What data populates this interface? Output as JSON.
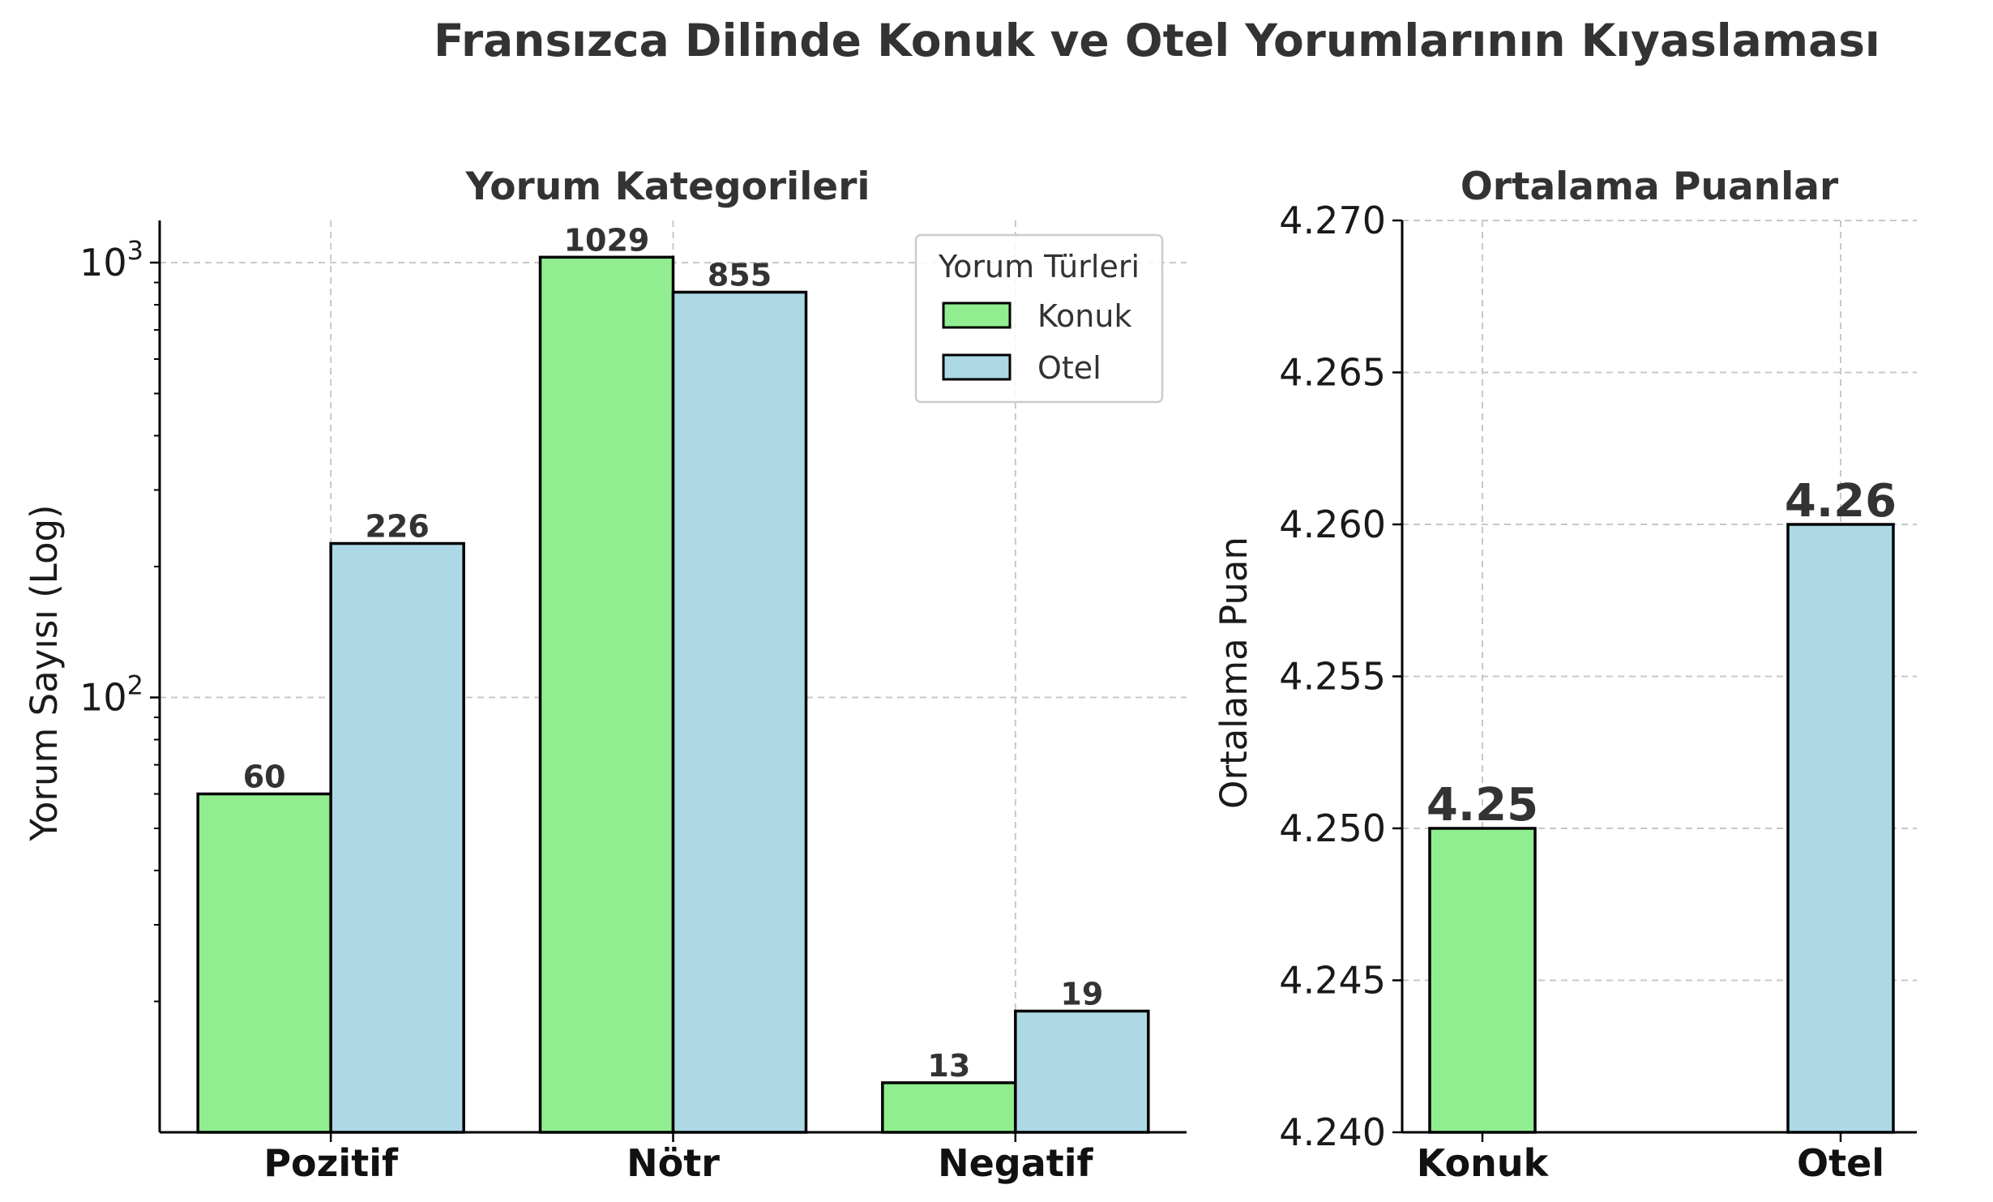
{
  "figure": {
    "title": "Fransızca Dilinde Konuk ve Otel Yorumlarının Kıyaslaması"
  },
  "colors": {
    "konuk": "#90ee90",
    "otel": "#add8e6",
    "edge": "#000000",
    "grid": "#c8c8c8",
    "text": "#333333"
  },
  "chart_data": [
    {
      "type": "bar",
      "title": "Yorum Kategorileri",
      "xlabel": "",
      "ylabel": "Yorum Sayısı (Log)",
      "yscale": "log",
      "ylim": [
        10,
        1250
      ],
      "yticks": [
        100,
        1000
      ],
      "ytick_labels": [
        {
          "base": "10",
          "exp": "2"
        },
        {
          "base": "10",
          "exp": "3"
        }
      ],
      "categories": [
        "Pozitif",
        "Nötr",
        "Negatif"
      ],
      "series": [
        {
          "name": "Konuk",
          "values": [
            60,
            1029,
            13
          ]
        },
        {
          "name": "Otel",
          "values": [
            226,
            855,
            19
          ]
        }
      ],
      "legend": {
        "title": "Yorum Türleri",
        "placement": "top-right"
      },
      "grid": true
    },
    {
      "type": "bar",
      "title": "Ortalama Puanlar",
      "xlabel": "",
      "ylabel": "Ortalama Puan",
      "ylim": [
        4.24,
        4.27
      ],
      "yticks": [
        "4.240",
        "4.245",
        "4.250",
        "4.255",
        "4.260",
        "4.265",
        "4.270"
      ],
      "categories": [
        "Konuk",
        "Otel"
      ],
      "values": [
        4.25,
        4.26
      ],
      "value_labels": [
        "4.25",
        "4.26"
      ],
      "grid": true
    }
  ]
}
